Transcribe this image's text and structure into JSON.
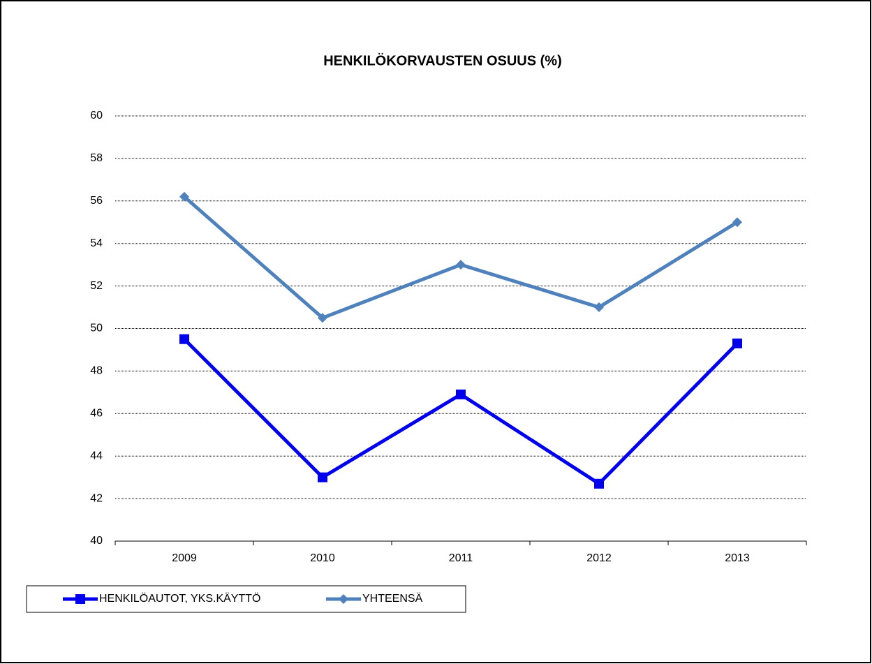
{
  "chart_data": {
    "type": "line",
    "title": "HENKILÖKORVAUSTEN OSUUS (%)",
    "categories": [
      "2009",
      "2010",
      "2011",
      "2012",
      "2013"
    ],
    "series": [
      {
        "name": "HENKILÖAUTOT, YKS.KÄYTTÖ",
        "color": "#0000ee",
        "marker": "square",
        "values": [
          49.5,
          43.0,
          46.9,
          42.7,
          49.3
        ]
      },
      {
        "name": "YHTEENSÄ",
        "color": "#4f81bd",
        "marker": "diamond",
        "values": [
          56.2,
          50.5,
          53.0,
          51.0,
          55.0
        ]
      }
    ],
    "ylim": [
      40,
      60
    ],
    "yticks": [
      40,
      42,
      44,
      46,
      48,
      50,
      52,
      54,
      56,
      58,
      60
    ],
    "grid": true,
    "legend": "bottom-left"
  }
}
